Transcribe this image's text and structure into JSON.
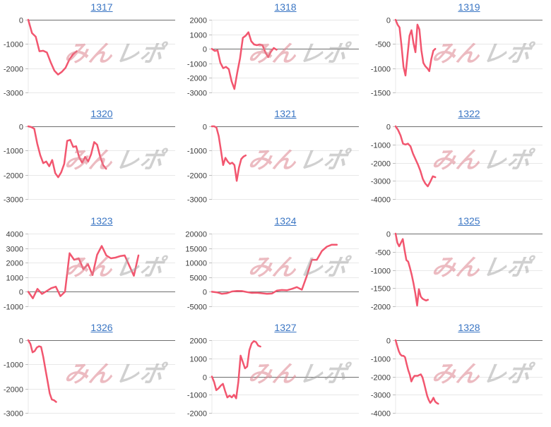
{
  "page": {
    "background": "#ffffff"
  },
  "styles": {
    "link_color": "#3b76c4",
    "line_color": "#f2566f",
    "grid_color": "#e8e8e8",
    "zero_line_color": "#6f6f6f",
    "tick_color": "#bdbdbd",
    "label_color": "#3c3c3c"
  },
  "watermark": {
    "name": "minrepo-logo",
    "text_left": "みん",
    "text_right": "レポ",
    "left_color": "#dd8490",
    "right_color": "#a3a3a3"
  },
  "chart_data": [
    {
      "type": "line",
      "title": "1317",
      "y_ticks": [
        0,
        -1000,
        -2000,
        -3000
      ],
      "ylim": [
        -3000,
        0
      ],
      "x_extent_frac": 0.33,
      "grid": true,
      "values": [
        0,
        -550,
        -700,
        -1300,
        -1280,
        -1350,
        -1750,
        -2100,
        -2260,
        -2150,
        -1980,
        -1650,
        -1420,
        -1300
      ]
    },
    {
      "type": "line",
      "title": "1318",
      "y_ticks": [
        2000,
        1000,
        0,
        -1000,
        -2000,
        -3000
      ],
      "ylim": [
        -3000,
        2000
      ],
      "x_extent_frac": 0.44,
      "grid": true,
      "values": [
        0,
        -140,
        -100,
        -950,
        -1330,
        -1240,
        -1400,
        -2240,
        -2760,
        -1650,
        -650,
        760,
        900,
        1140,
        520,
        300,
        250,
        300,
        250,
        -240,
        -570,
        -190,
        60,
        -60
      ]
    },
    {
      "type": "line",
      "title": "1319",
      "y_ticks": [
        0,
        -500,
        -1000,
        -1500
      ],
      "ylim": [
        -1500,
        0
      ],
      "x_extent_frac": 0.27,
      "grid": true,
      "values": [
        0,
        -100,
        -160,
        -540,
        -970,
        -1150,
        -750,
        -330,
        -215,
        -480,
        -670,
        -100,
        -200,
        -630,
        -890,
        -960,
        -1000,
        -1060,
        -815,
        -640,
        -600
      ]
    },
    {
      "type": "line",
      "title": "1320",
      "y_ticks": [
        0,
        -1000,
        -2000,
        -3000
      ],
      "ylim": [
        -3000,
        0
      ],
      "x_extent_frac": 0.53,
      "grid": true,
      "values": [
        0,
        -30,
        -100,
        -710,
        -1190,
        -1520,
        -1450,
        -1650,
        -1390,
        -1930,
        -2100,
        -1900,
        -1550,
        -600,
        -560,
        -850,
        -820,
        -1280,
        -1500,
        -1260,
        -1450,
        -1150,
        -650,
        -760,
        -1250,
        -1600,
        -1750
      ]
    },
    {
      "type": "line",
      "title": "1321",
      "y_ticks": [
        0,
        -1000,
        -2000,
        -3000
      ],
      "ylim": [
        -3000,
        0
      ],
      "x_extent_frac": 0.23,
      "grid": true,
      "values": [
        0,
        0,
        -50,
        -400,
        -1000,
        -1600,
        -1300,
        -1450,
        -1550,
        -1500,
        -1600,
        -2250,
        -1700,
        -1350,
        -1250,
        -1200
      ]
    },
    {
      "type": "line",
      "title": "1322",
      "y_ticks": [
        0,
        -1000,
        -2000,
        -3000,
        -4000
      ],
      "ylim": [
        -4000,
        0
      ],
      "x_extent_frac": 0.27,
      "grid": true,
      "values": [
        0,
        -200,
        -500,
        -950,
        -1000,
        -950,
        -1100,
        -1500,
        -1800,
        -2100,
        -2450,
        -2900,
        -3150,
        -3300,
        -3050,
        -2750,
        -2800
      ]
    },
    {
      "type": "line",
      "title": "1323",
      "y_ticks": [
        4000,
        3000,
        2000,
        1000,
        0,
        -1000
      ],
      "ylim": [
        -1000,
        4000
      ],
      "x_extent_frac": 0.75,
      "grid": true,
      "values": [
        0,
        -450,
        200,
        -150,
        50,
        250,
        350,
        -300,
        0,
        2650,
        2200,
        2300,
        1550,
        1900,
        1150,
        2550,
        3150,
        2500,
        2300,
        2350,
        2450,
        2500,
        1800,
        1100,
        2500
      ]
    },
    {
      "type": "line",
      "title": "1324",
      "y_ticks": [
        20000,
        15000,
        10000,
        5000,
        0,
        -5000
      ],
      "ylim": [
        -5000,
        20000
      ],
      "x_extent_frac": 0.85,
      "grid": true,
      "values": [
        0,
        -200,
        -700,
        -500,
        100,
        300,
        250,
        -100,
        -400,
        -350,
        -500,
        -700,
        -600,
        400,
        600,
        500,
        1000,
        1600,
        700,
        5500,
        11000,
        11000,
        14000,
        15500,
        16200,
        16200
      ]
    },
    {
      "type": "line",
      "title": "1325",
      "y_ticks": [
        0,
        -500,
        -1000,
        -1500,
        -2000
      ],
      "ylim": [
        -2000,
        0
      ],
      "x_extent_frac": 0.22,
      "grid": true,
      "values": [
        0,
        -250,
        -350,
        -250,
        -150,
        -450,
        -730,
        -770,
        -940,
        -1140,
        -1370,
        -1650,
        -1980,
        -1530,
        -1730,
        -1790,
        -1820,
        -1840,
        -1820
      ]
    },
    {
      "type": "line",
      "title": "1326",
      "y_ticks": [
        0,
        -1000,
        -2000,
        -3000
      ],
      "ylim": [
        -3000,
        0
      ],
      "x_extent_frac": 0.19,
      "grid": true,
      "values": [
        0,
        -150,
        -500,
        -450,
        -300,
        -250,
        -280,
        -700,
        -1200,
        -1700,
        -2200,
        -2450,
        -2480,
        -2550
      ]
    },
    {
      "type": "line",
      "title": "1327",
      "y_ticks": [
        2000,
        1000,
        0,
        -1000,
        -2000
      ],
      "ylim": [
        -2000,
        2000
      ],
      "x_extent_frac": 0.33,
      "grid": true,
      "values": [
        0,
        -300,
        -750,
        -650,
        -500,
        -400,
        -800,
        -1150,
        -1050,
        -1150,
        -1000,
        -1200,
        -300,
        1150,
        800,
        450,
        550,
        1450,
        1820,
        1950,
        1900,
        1700,
        1650
      ]
    },
    {
      "type": "line",
      "title": "1328",
      "y_ticks": [
        0,
        -1000,
        -2000,
        -3000,
        -4000
      ],
      "ylim": [
        -4000,
        0
      ],
      "x_extent_frac": 0.29,
      "grid": true,
      "values": [
        0,
        -300,
        -600,
        -780,
        -860,
        -860,
        -940,
        -1300,
        -1650,
        -1900,
        -2270,
        -2080,
        -1960,
        -1960,
        -1960,
        -1920,
        -1880,
        -2040,
        -2350,
        -2700,
        -3060,
        -3290,
        -3450,
        -3330,
        -3170,
        -3370,
        -3450,
        -3500
      ]
    }
  ]
}
